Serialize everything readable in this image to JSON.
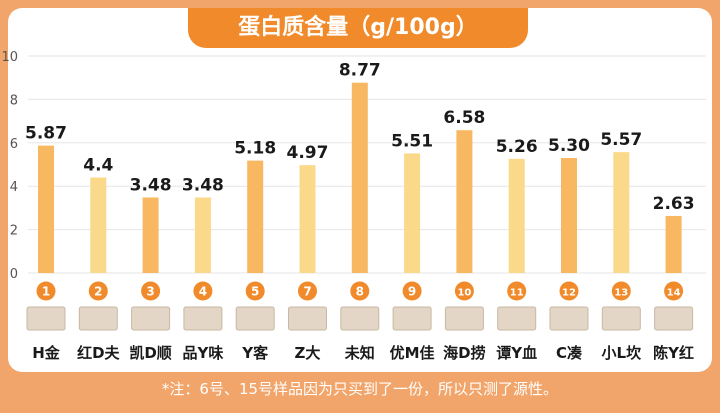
{
  "chart_data": {
    "type": "bar",
    "title": "蛋白质含量（g/100g）",
    "ylim": [
      0,
      10
    ],
    "yticks": [
      0,
      2,
      4,
      6,
      8,
      10
    ],
    "grid": true,
    "colors": {
      "odd": "#f7b861",
      "even": "#fbd98a",
      "badge": "#f08a2a",
      "frame": "#f2a56a"
    },
    "categories": [
      {
        "no": "1",
        "label": "H金",
        "value": 5.87,
        "value_label": "5.87"
      },
      {
        "no": "2",
        "label": "红D夫",
        "value": 4.4,
        "value_label": "4.4"
      },
      {
        "no": "3",
        "label": "凯D顺",
        "value": 3.48,
        "value_label": "3.48"
      },
      {
        "no": "4",
        "label": "品Y味",
        "value": 3.48,
        "value_label": "3.48"
      },
      {
        "no": "5",
        "label": "Y客",
        "value": 5.18,
        "value_label": "5.18"
      },
      {
        "no": "7",
        "label": "Z大",
        "value": 4.97,
        "value_label": "4.97"
      },
      {
        "no": "8",
        "label": "未知",
        "value": 8.77,
        "value_label": "8.77"
      },
      {
        "no": "9",
        "label": "优M佳",
        "value": 5.51,
        "value_label": "5.51"
      },
      {
        "no": "10",
        "label": "海D捞",
        "value": 6.58,
        "value_label": "6.58"
      },
      {
        "no": "11",
        "label": "谭Y血",
        "value": 5.26,
        "value_label": "5.26"
      },
      {
        "no": "12",
        "label": "C凑",
        "value": 5.3,
        "value_label": "5.30"
      },
      {
        "no": "13",
        "label": "小L坎",
        "value": 5.57,
        "value_label": "5.57"
      },
      {
        "no": "14",
        "label": "陈Y红",
        "value": 2.63,
        "value_label": "2.63"
      }
    ],
    "footnote": "*注：6号、15号样品因为只买到了一份，所以只测了源性。"
  }
}
